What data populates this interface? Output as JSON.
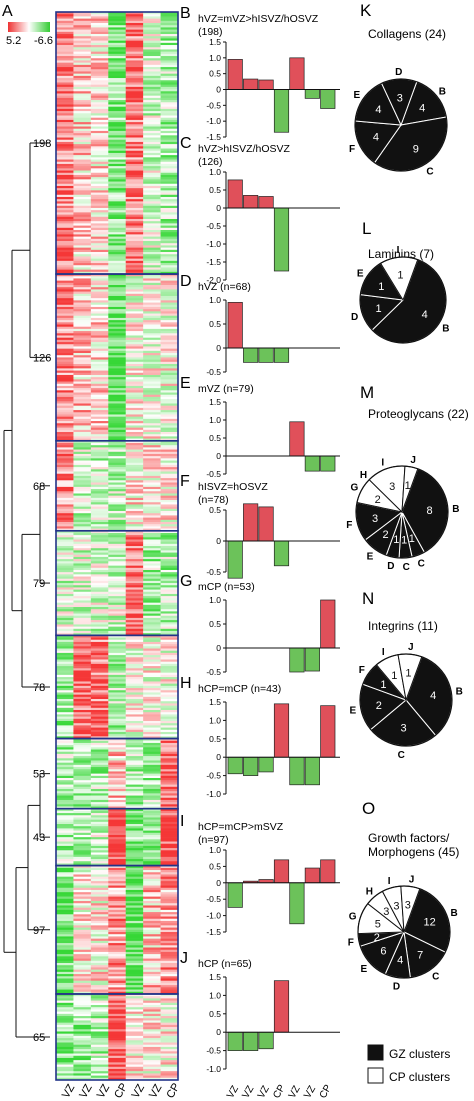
{
  "figure": {
    "panel_letters": [
      "A",
      "B",
      "C",
      "D",
      "E",
      "F",
      "G",
      "H",
      "I",
      "J",
      "K",
      "L",
      "M",
      "N",
      "O"
    ],
    "legend_scale": {
      "max": "5.2",
      "min": "-6.6",
      "high_color": "#e03030",
      "low_color": "#30c030"
    },
    "cluster_sizes": [
      "198",
      "126",
      "68",
      "79",
      "78",
      "53",
      "43",
      "97",
      "65"
    ],
    "heatmap_columns": [
      "hVZ",
      "hISVZ",
      "hOSVZ",
      "hCP",
      "mVZ",
      "mSVZ",
      "mCP"
    ],
    "heatmap_column_labels_visible": [
      "VZ",
      "VZ",
      "VZ",
      "CP",
      "VZ",
      "VZ",
      "CP"
    ],
    "pie_legend": [
      {
        "label": "GZ clusters",
        "color": "#111111"
      },
      {
        "label": "CP clusters",
        "color": "#ffffff"
      }
    ]
  },
  "chart_data": [
    {
      "type": "bar",
      "panel": "B",
      "title": "hVZ=mVZ>hISVZ/hOSVZ",
      "subtitle": "(198)",
      "values": [
        0.95,
        0.33,
        0.3,
        -1.35,
        1.0,
        -0.28,
        -0.6
      ],
      "ylim": [
        -1.5,
        1.5
      ],
      "yticks": [
        "1.5",
        "1.0",
        "0.5",
        "0",
        "-0.5",
        "-1.0",
        "-1.5"
      ]
    },
    {
      "type": "bar",
      "panel": "C",
      "title": "hVZ>hISVZ/hOSVZ",
      "subtitle": "(126)",
      "values": [
        0.78,
        0.35,
        0.32,
        -1.75,
        0,
        0,
        0
      ],
      "ylim": [
        -2.0,
        1.0
      ],
      "yticks": [
        "1.0",
        "0.5",
        "0",
        "-0.5",
        "-1.0",
        "-1.5",
        "-2.0"
      ]
    },
    {
      "type": "bar",
      "panel": "D",
      "title": "hVZ (n=68)",
      "subtitle": "",
      "values": [
        0.95,
        -0.3,
        -0.3,
        -0.3,
        0,
        0,
        0
      ],
      "ylim": [
        -0.5,
        1.0
      ],
      "yticks": [
        "1.0",
        "0.5",
        "0",
        "-0.5"
      ]
    },
    {
      "type": "bar",
      "panel": "E",
      "title": "mVZ (n=79)",
      "subtitle": "",
      "values": [
        0,
        0,
        0,
        0,
        0.95,
        -0.42,
        -0.42
      ],
      "ylim": [
        -0.5,
        1.5
      ],
      "yticks": [
        "1.5",
        "1.0",
        "0.5",
        "0",
        "-0.5"
      ]
    },
    {
      "type": "bar",
      "panel": "F",
      "title": "hISVZ=hOSVZ",
      "subtitle": "(n=78)",
      "values": [
        -0.6,
        0.6,
        0.55,
        -0.4,
        0,
        0,
        0
      ],
      "ylim": [
        -0.5,
        0.5
      ],
      "yticks": [
        "0.5",
        "0",
        "-0.5"
      ]
    },
    {
      "type": "bar",
      "panel": "G",
      "title": "mCP (n=53)",
      "subtitle": "",
      "values": [
        0,
        0,
        0,
        0,
        -0.5,
        -0.48,
        1.0
      ],
      "ylim": [
        -0.5,
        1.0
      ],
      "yticks": [
        "1.0",
        "0.5",
        "0",
        "-0.5"
      ]
    },
    {
      "type": "bar",
      "panel": "H",
      "title": "hCP=mCP (n=43)",
      "subtitle": "",
      "values": [
        -0.45,
        -0.5,
        -0.4,
        1.45,
        -0.75,
        -0.75,
        1.4
      ],
      "ylim": [
        -1.0,
        1.5
      ],
      "yticks": [
        "1.5",
        "1.0",
        "0.5",
        "0",
        "-0.5",
        "-1.0"
      ]
    },
    {
      "type": "bar",
      "panel": "I",
      "title": "hCP=mCP>mSVZ",
      "subtitle": "(n=97)",
      "values": [
        -0.75,
        0.05,
        0.1,
        0.7,
        -1.25,
        0.45,
        0.7
      ],
      "ylim": [
        -1.5,
        1.0
      ],
      "yticks": [
        "1.0",
        "0.5",
        "0",
        "-0.5",
        "-1.0",
        "-1.5"
      ]
    },
    {
      "type": "bar",
      "panel": "J",
      "title": "hCP (n=65)",
      "subtitle": "",
      "values": [
        -0.5,
        -0.5,
        -0.45,
        1.4,
        0,
        0,
        0
      ],
      "ylim": [
        -1.0,
        1.5
      ],
      "yticks": [
        "1.5",
        "1.0",
        "0.5",
        "0",
        "-0.5",
        "-1.0"
      ]
    },
    {
      "type": "pie",
      "panel": "K",
      "title": "Collagens (24)",
      "title2": "",
      "slices": [
        {
          "label": "B",
          "value": 4,
          "dark": true
        },
        {
          "label": "C",
          "value": 9,
          "dark": true
        },
        {
          "label": "F",
          "value": 4,
          "dark": true
        },
        {
          "label": "E",
          "value": 4,
          "dark": true
        },
        {
          "label": "D",
          "value": 3,
          "dark": true
        }
      ]
    },
    {
      "type": "pie",
      "panel": "L",
      "title": "Laminins (7)",
      "title2": "",
      "slices": [
        {
          "label": "B",
          "value": 4,
          "dark": true
        },
        {
          "label": "D",
          "value": 1,
          "dark": true
        },
        {
          "label": "E",
          "value": 1,
          "dark": true
        },
        {
          "label": "I",
          "value": 1,
          "dark": false
        }
      ]
    },
    {
      "type": "pie",
      "panel": "M",
      "title": "Proteoglycans (22)",
      "title2": "",
      "slices": [
        {
          "label": "B",
          "value": 8,
          "dark": true
        },
        {
          "label": "C",
          "value": 1,
          "dark": true
        },
        {
          "label": "C",
          "value": 1,
          "dark": true
        },
        {
          "label": "D",
          "value": 1,
          "dark": true
        },
        {
          "label": "E",
          "value": 2,
          "dark": true
        },
        {
          "label": "F",
          "value": 3,
          "dark": true
        },
        {
          "label": "G",
          "value": 2,
          "dark": false
        },
        {
          "label": "H",
          "value": 0,
          "dark": false
        },
        {
          "label": "I",
          "value": 3,
          "dark": false
        },
        {
          "label": "J",
          "value": 1,
          "dark": false
        }
      ]
    },
    {
      "type": "pie",
      "panel": "N",
      "title": "Integrins (11)",
      "title2": "",
      "slices": [
        {
          "label": "B",
          "value": 4,
          "dark": true
        },
        {
          "label": "C",
          "value": 3,
          "dark": true
        },
        {
          "label": "E",
          "value": 2,
          "dark": true
        },
        {
          "label": "F",
          "value": 1,
          "dark": true
        },
        {
          "label": "I",
          "value": 1,
          "dark": false
        },
        {
          "label": "J",
          "value": 1,
          "dark": false
        }
      ]
    },
    {
      "type": "pie",
      "panel": "O",
      "title": "Growth factors/",
      "title2": "Morphogens (45)",
      "slices": [
        {
          "label": "B",
          "value": 12,
          "dark": true
        },
        {
          "label": "C",
          "value": 7,
          "dark": true
        },
        {
          "label": "D",
          "value": 4,
          "dark": true
        },
        {
          "label": "E",
          "value": 6,
          "dark": true
        },
        {
          "label": "F",
          "value": 2,
          "dark": true
        },
        {
          "label": "G",
          "value": 5,
          "dark": false
        },
        {
          "label": "H",
          "value": 3,
          "dark": false
        },
        {
          "label": "I",
          "value": 3,
          "dark": false
        },
        {
          "label": "J",
          "value": 3,
          "dark": false
        }
      ]
    }
  ]
}
